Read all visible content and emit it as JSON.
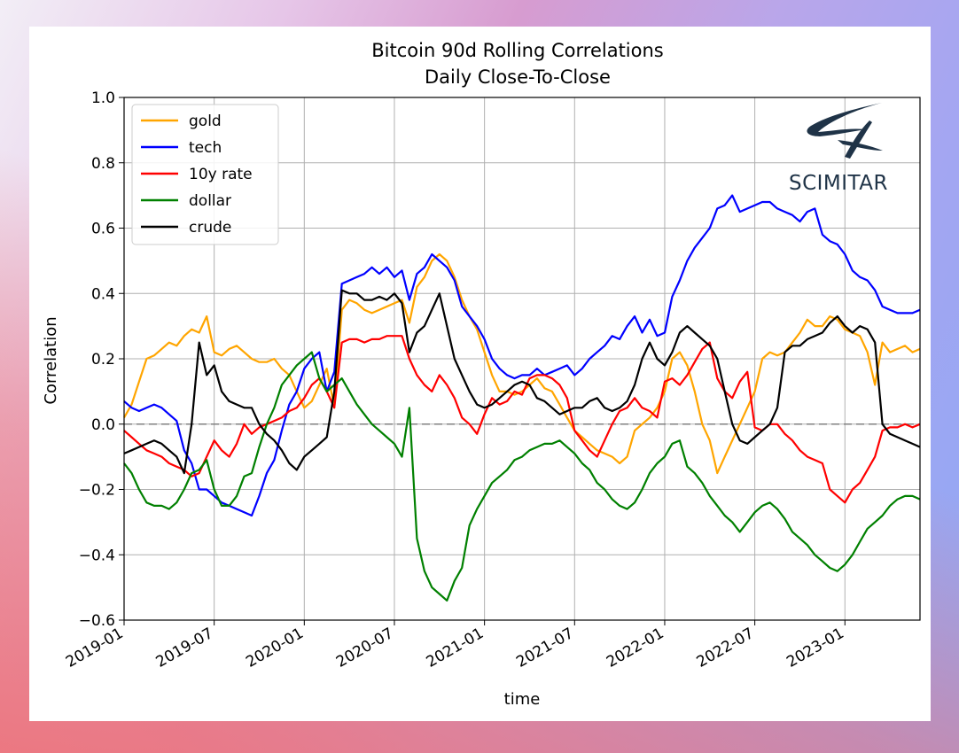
{
  "chart_data": {
    "type": "line",
    "title": "Bitcoin 90d Rolling Correlations",
    "subtitle": "Daily Close-To-Close",
    "xlabel": "time",
    "ylabel": "Correlation",
    "ylim": [
      -0.6,
      1.0
    ],
    "xlim": [
      "2019-01",
      "2023-06"
    ],
    "yticks": [
      -0.6,
      -0.4,
      -0.2,
      0.0,
      0.2,
      0.4,
      0.6,
      0.8,
      1.0
    ],
    "ytick_labels": [
      "−0.6",
      "−0.4",
      "−0.2",
      "0.0",
      "0.2",
      "0.4",
      "0.6",
      "0.8",
      "1.0"
    ],
    "xticks": [
      0,
      6,
      12,
      18,
      24,
      30,
      36,
      42,
      48
    ],
    "xtick_labels": [
      "2019-01",
      "2019-07",
      "2020-01",
      "2020-07",
      "2021-01",
      "2021-07",
      "2022-01",
      "2022-07",
      "2023-01"
    ],
    "x_months_end": 53,
    "grid": true,
    "zero_line": true,
    "legend_position": "top-left",
    "x": [
      0,
      0.5,
      1,
      1.5,
      2,
      2.5,
      3,
      3.5,
      4,
      4.5,
      5,
      5.5,
      6,
      6.5,
      7,
      7.5,
      8,
      8.5,
      9,
      9.5,
      10,
      10.5,
      11,
      11.5,
      12,
      12.5,
      13,
      13.5,
      14,
      14.5,
      15,
      15.5,
      16,
      16.5,
      17,
      17.5,
      18,
      18.5,
      19,
      19.5,
      20,
      20.5,
      21,
      21.5,
      22,
      22.5,
      23,
      23.5,
      24,
      24.5,
      25,
      25.5,
      26,
      26.5,
      27,
      27.5,
      28,
      28.5,
      29,
      29.5,
      30,
      30.5,
      31,
      31.5,
      32,
      32.5,
      33,
      33.5,
      34,
      34.5,
      35,
      35.5,
      36,
      36.5,
      37,
      37.5,
      38,
      38.5,
      39,
      39.5,
      40,
      40.5,
      41,
      41.5,
      42,
      42.5,
      43,
      43.5,
      44,
      44.5,
      45,
      45.5,
      46,
      46.5,
      47,
      47.5,
      48,
      48.5,
      49,
      49.5,
      50,
      50.5,
      51,
      51.5,
      52,
      52.5,
      53
    ],
    "series": [
      {
        "name": "gold",
        "color": "#ffa500",
        "values": [
          0.02,
          0.06,
          0.13,
          0.2,
          0.21,
          0.23,
          0.25,
          0.24,
          0.27,
          0.29,
          0.28,
          0.33,
          0.22,
          0.21,
          0.23,
          0.24,
          0.22,
          0.2,
          0.19,
          0.19,
          0.2,
          0.17,
          0.15,
          0.1,
          0.05,
          0.07,
          0.12,
          0.17,
          0.05,
          0.35,
          0.38,
          0.37,
          0.35,
          0.34,
          0.35,
          0.36,
          0.37,
          0.38,
          0.31,
          0.42,
          0.45,
          0.5,
          0.52,
          0.5,
          0.45,
          0.38,
          0.33,
          0.29,
          0.22,
          0.15,
          0.1,
          0.1,
          0.09,
          0.1,
          0.12,
          0.14,
          0.11,
          0.1,
          0.06,
          0.02,
          -0.02,
          -0.04,
          -0.06,
          -0.08,
          -0.09,
          -0.1,
          -0.12,
          -0.1,
          -0.02,
          0.0,
          0.02,
          0.05,
          0.1,
          0.2,
          0.22,
          0.18,
          0.1,
          0.0,
          -0.05,
          -0.15,
          -0.1,
          -0.05,
          0.0,
          0.05,
          0.1,
          0.2,
          0.22,
          0.21,
          0.22,
          0.25,
          0.28,
          0.32,
          0.3,
          0.3,
          0.33,
          0.32,
          0.29,
          0.28,
          0.27,
          0.22,
          0.12,
          0.25,
          0.22,
          0.23,
          0.24,
          0.22,
          0.23
        ]
      },
      {
        "name": "tech",
        "color": "#0000ff",
        "values": [
          0.07,
          0.05,
          0.04,
          0.05,
          0.06,
          0.05,
          0.03,
          0.01,
          -0.08,
          -0.12,
          -0.2,
          -0.2,
          -0.22,
          -0.24,
          -0.25,
          -0.26,
          -0.27,
          -0.28,
          -0.22,
          -0.15,
          -0.11,
          -0.02,
          0.06,
          0.1,
          0.17,
          0.2,
          0.22,
          0.1,
          0.16,
          0.43,
          0.44,
          0.45,
          0.46,
          0.48,
          0.46,
          0.48,
          0.45,
          0.47,
          0.38,
          0.46,
          0.48,
          0.52,
          0.5,
          0.48,
          0.44,
          0.36,
          0.33,
          0.3,
          0.26,
          0.2,
          0.17,
          0.15,
          0.14,
          0.15,
          0.15,
          0.17,
          0.15,
          0.16,
          0.17,
          0.18,
          0.15,
          0.17,
          0.2,
          0.22,
          0.24,
          0.27,
          0.26,
          0.3,
          0.33,
          0.28,
          0.32,
          0.27,
          0.28,
          0.39,
          0.44,
          0.5,
          0.54,
          0.57,
          0.6,
          0.66,
          0.67,
          0.7,
          0.65,
          0.66,
          0.67,
          0.68,
          0.68,
          0.66,
          0.65,
          0.64,
          0.62,
          0.65,
          0.66,
          0.58,
          0.56,
          0.55,
          0.52,
          0.47,
          0.45,
          0.44,
          0.41,
          0.36,
          0.35,
          0.34,
          0.34,
          0.34,
          0.35
        ]
      },
      {
        "name": "10y rate",
        "color": "#ff0000",
        "values": [
          -0.02,
          -0.04,
          -0.06,
          -0.08,
          -0.09,
          -0.1,
          -0.12,
          -0.13,
          -0.14,
          -0.16,
          -0.15,
          -0.1,
          -0.05,
          -0.08,
          -0.1,
          -0.06,
          0.0,
          -0.03,
          -0.01,
          0.0,
          0.01,
          0.02,
          0.04,
          0.05,
          0.08,
          0.12,
          0.14,
          0.1,
          0.05,
          0.25,
          0.26,
          0.26,
          0.25,
          0.26,
          0.26,
          0.27,
          0.27,
          0.27,
          0.2,
          0.15,
          0.12,
          0.1,
          0.15,
          0.12,
          0.08,
          0.02,
          0.0,
          -0.03,
          0.03,
          0.08,
          0.06,
          0.07,
          0.1,
          0.09,
          0.14,
          0.15,
          0.15,
          0.14,
          0.12,
          0.08,
          -0.02,
          -0.05,
          -0.08,
          -0.1,
          -0.05,
          0.0,
          0.04,
          0.05,
          0.08,
          0.05,
          0.04,
          0.02,
          0.13,
          0.14,
          0.12,
          0.15,
          0.19,
          0.23,
          0.25,
          0.14,
          0.1,
          0.08,
          0.13,
          0.16,
          -0.01,
          -0.02,
          0.0,
          0.0,
          -0.03,
          -0.05,
          -0.08,
          -0.1,
          -0.11,
          -0.12,
          -0.2,
          -0.22,
          -0.24,
          -0.2,
          -0.18,
          -0.14,
          -0.1,
          -0.02,
          -0.01,
          -0.01,
          0.0,
          -0.01,
          0.0
        ]
      },
      {
        "name": "dollar",
        "color": "#008000",
        "values": [
          -0.12,
          -0.15,
          -0.2,
          -0.24,
          -0.25,
          -0.25,
          -0.26,
          -0.24,
          -0.2,
          -0.15,
          -0.14,
          -0.11,
          -0.2,
          -0.25,
          -0.25,
          -0.22,
          -0.16,
          -0.15,
          -0.07,
          0.0,
          0.05,
          0.12,
          0.15,
          0.18,
          0.2,
          0.22,
          0.14,
          0.1,
          0.12,
          0.14,
          0.1,
          0.06,
          0.03,
          0.0,
          -0.02,
          -0.04,
          -0.06,
          -0.1,
          0.05,
          -0.35,
          -0.45,
          -0.5,
          -0.52,
          -0.54,
          -0.48,
          -0.44,
          -0.31,
          -0.26,
          -0.22,
          -0.18,
          -0.16,
          -0.14,
          -0.11,
          -0.1,
          -0.08,
          -0.07,
          -0.06,
          -0.06,
          -0.05,
          -0.07,
          -0.09,
          -0.12,
          -0.14,
          -0.18,
          -0.2,
          -0.23,
          -0.25,
          -0.26,
          -0.24,
          -0.2,
          -0.15,
          -0.12,
          -0.1,
          -0.06,
          -0.05,
          -0.13,
          -0.15,
          -0.18,
          -0.22,
          -0.25,
          -0.28,
          -0.3,
          -0.33,
          -0.3,
          -0.27,
          -0.25,
          -0.24,
          -0.26,
          -0.29,
          -0.33,
          -0.35,
          -0.37,
          -0.4,
          -0.42,
          -0.44,
          -0.45,
          -0.43,
          -0.4,
          -0.36,
          -0.32,
          -0.3,
          -0.28,
          -0.25,
          -0.23,
          -0.22,
          -0.22,
          -0.23
        ]
      },
      {
        "name": "crude",
        "color": "#000000",
        "values": [
          -0.09,
          -0.08,
          -0.07,
          -0.06,
          -0.05,
          -0.06,
          -0.08,
          -0.1,
          -0.15,
          0.0,
          0.25,
          0.15,
          0.18,
          0.1,
          0.07,
          0.06,
          0.05,
          0.05,
          0.0,
          -0.03,
          -0.05,
          -0.08,
          -0.12,
          -0.14,
          -0.1,
          -0.08,
          -0.06,
          -0.04,
          0.1,
          0.41,
          0.4,
          0.4,
          0.38,
          0.38,
          0.39,
          0.38,
          0.4,
          0.37,
          0.22,
          0.28,
          0.3,
          0.35,
          0.4,
          0.3,
          0.2,
          0.15,
          0.1,
          0.06,
          0.05,
          0.06,
          0.08,
          0.1,
          0.12,
          0.13,
          0.12,
          0.08,
          0.07,
          0.05,
          0.03,
          0.04,
          0.05,
          0.05,
          0.07,
          0.08,
          0.05,
          0.04,
          0.05,
          0.07,
          0.12,
          0.2,
          0.25,
          0.2,
          0.18,
          0.22,
          0.28,
          0.3,
          0.28,
          0.26,
          0.24,
          0.2,
          0.1,
          0.0,
          -0.05,
          -0.06,
          -0.04,
          -0.02,
          0.0,
          0.05,
          0.22,
          0.24,
          0.24,
          0.26,
          0.27,
          0.28,
          0.31,
          0.33,
          0.3,
          0.28,
          0.3,
          0.29,
          0.25,
          0.0,
          -0.03,
          -0.04,
          -0.05,
          -0.06,
          -0.07
        ]
      }
    ]
  },
  "watermark": {
    "brand": "SCIMITAR"
  }
}
